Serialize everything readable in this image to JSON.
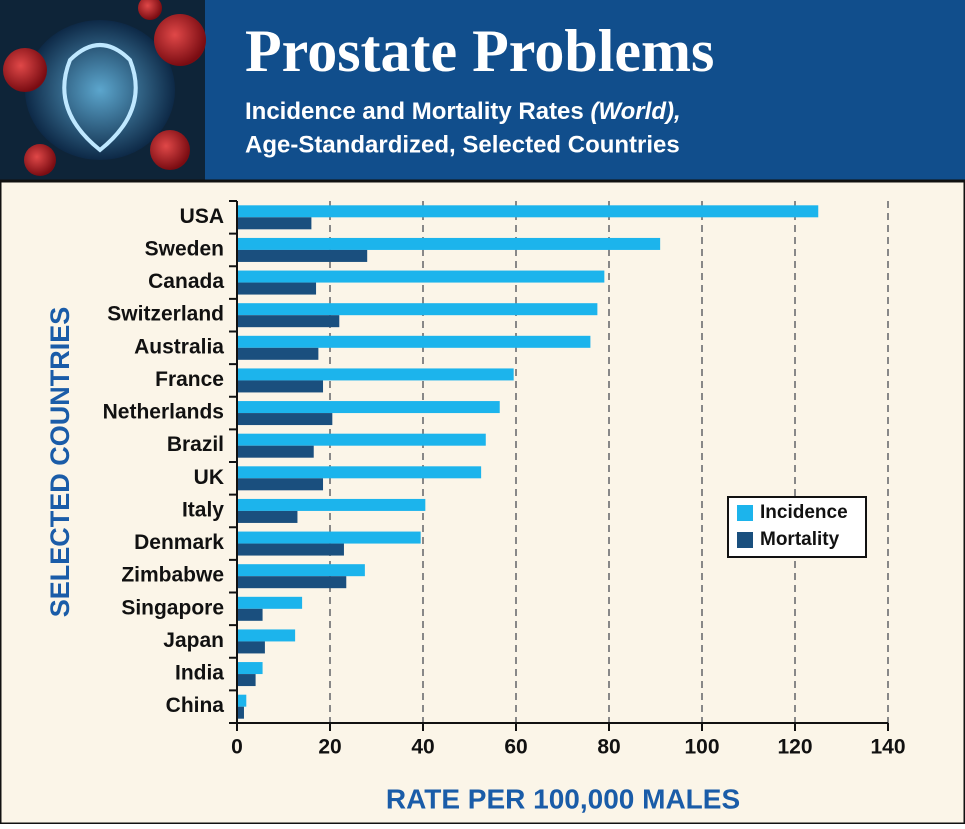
{
  "chart_data": {
    "type": "bar",
    "orientation": "horizontal",
    "title": "Prostate Problems",
    "subtitle": [
      "Incidence and Mortality Rates",
      "(World),",
      "Age-Standardized, Selected Countries"
    ],
    "x_label": "RATE PER 100,000 MALES",
    "y_label": "SELECTED COUNTRIES",
    "categories": [
      "USA",
      "Sweden",
      "Canada",
      "Switzerland",
      "Australia",
      "France",
      "Netherlands",
      "Brazil",
      "UK",
      "Italy",
      "Denmark",
      "Zimbabwe",
      "Singapore",
      "Japan",
      "India",
      "China"
    ],
    "series": [
      {
        "name": "Incidence",
        "color": "#1cb4ec",
        "values": [
          125,
          91,
          79,
          77.5,
          76,
          59.5,
          56.5,
          53.5,
          52.5,
          40.5,
          39.5,
          27.5,
          14,
          12.5,
          5.5,
          2
        ]
      },
      {
        "name": "Mortality",
        "color": "#1a4f7e",
        "values": [
          16,
          28,
          17,
          22,
          17.5,
          18.5,
          20.5,
          16.5,
          18.5,
          13,
          23,
          23.5,
          5.5,
          6,
          4,
          1.5
        ]
      }
    ],
    "xlim": [
      0,
      140
    ],
    "xticks": [
      0,
      20,
      40,
      60,
      80,
      100,
      120,
      140
    ],
    "grid": true,
    "legend": "right"
  }
}
